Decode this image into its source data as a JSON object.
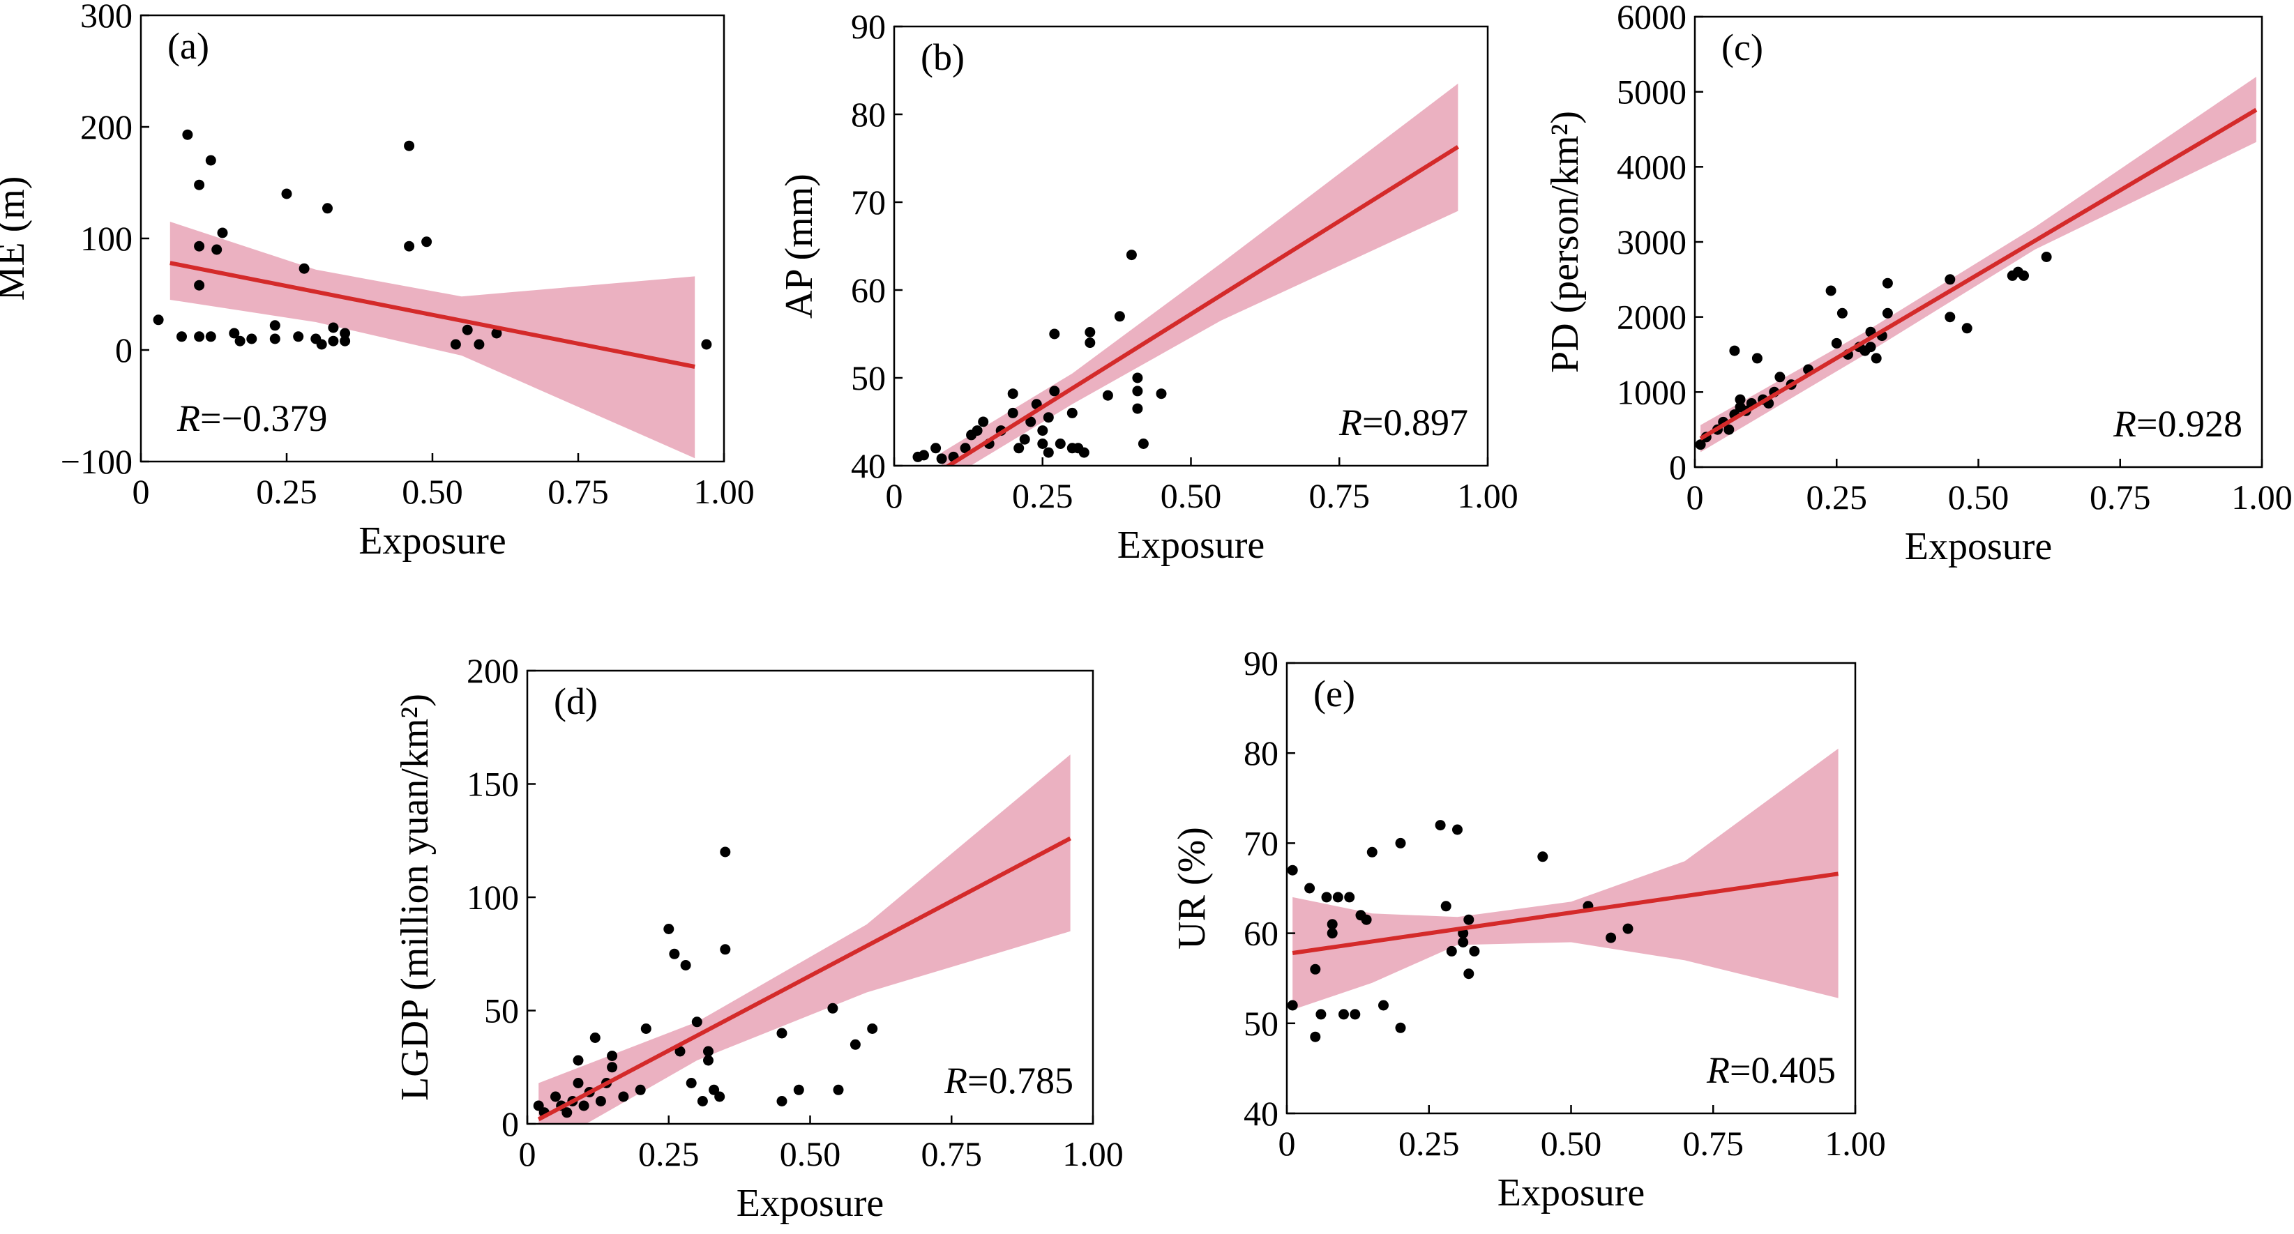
{
  "colors": {
    "fit_line": "#d42a2a",
    "confidence_band": "#e8a3b6",
    "points": "#000000",
    "axes": "#000000"
  },
  "chart_data": [
    {
      "type": "scatter",
      "panel": "(a)",
      "xlabel": "Exposure",
      "ylabel": "ME (m)",
      "xlim": [
        0,
        1
      ],
      "ylim": [
        -100,
        300
      ],
      "xticks": [
        0,
        0.25,
        0.5,
        0.75,
        1.0
      ],
      "xtick_labels": [
        "0",
        "0.25",
        "0.50",
        "0.75",
        "1.00"
      ],
      "yticks": [
        -100,
        0,
        100,
        200,
        300
      ],
      "ytick_labels": [
        "−100",
        "0",
        "100",
        "200",
        "300"
      ],
      "r_prefix": "R",
      "r_value": "=−0.379",
      "r_position": "bottom-left",
      "fit": {
        "x": [
          0.05,
          0.95
        ],
        "y": [
          78,
          -15
        ]
      },
      "band": {
        "x": [
          0.05,
          0.3,
          0.55,
          0.95
        ],
        "upper": [
          115,
          72,
          48,
          66
        ],
        "lower": [
          45,
          25,
          -5,
          -97
        ]
      },
      "points": [
        [
          0.03,
          27
        ],
        [
          0.08,
          193
        ],
        [
          0.1,
          148
        ],
        [
          0.12,
          170
        ],
        [
          0.1,
          93
        ],
        [
          0.14,
          105
        ],
        [
          0.13,
          90
        ],
        [
          0.1,
          58
        ],
        [
          0.07,
          12
        ],
        [
          0.1,
          12
        ],
        [
          0.12,
          12
        ],
        [
          0.16,
          15
        ],
        [
          0.17,
          8
        ],
        [
          0.19,
          10
        ],
        [
          0.23,
          22
        ],
        [
          0.23,
          10
        ],
        [
          0.25,
          140
        ],
        [
          0.27,
          12
        ],
        [
          0.28,
          73
        ],
        [
          0.3,
          10
        ],
        [
          0.31,
          5
        ],
        [
          0.32,
          127
        ],
        [
          0.33,
          8
        ],
        [
          0.35,
          15
        ],
        [
          0.35,
          8
        ],
        [
          0.33,
          20
        ],
        [
          0.46,
          183
        ],
        [
          0.46,
          93
        ],
        [
          0.49,
          97
        ],
        [
          0.54,
          5
        ],
        [
          0.56,
          18
        ],
        [
          0.58,
          5
        ],
        [
          0.61,
          15
        ],
        [
          0.97,
          5
        ]
      ]
    },
    {
      "type": "scatter",
      "panel": "(b)",
      "xlabel": "Exposure",
      "ylabel": "AP (mm)",
      "xlim": [
        0,
        1
      ],
      "ylim": [
        40,
        90
      ],
      "xticks": [
        0,
        0.25,
        0.5,
        0.75,
        1.0
      ],
      "xtick_labels": [
        "0",
        "0.25",
        "0.50",
        "0.75",
        "1.00"
      ],
      "yticks": [
        40,
        50,
        60,
        70,
        80,
        90
      ],
      "ytick_labels": [
        "40",
        "50",
        "60",
        "70",
        "80",
        "90"
      ],
      "r_prefix": "R",
      "r_value": "=0.897",
      "r_position": "bottom-right",
      "fit": {
        "x": [
          0.08,
          0.95
        ],
        "y": [
          39.5,
          76.3
        ]
      },
      "band": {
        "x": [
          0.08,
          0.3,
          0.55,
          0.95
        ],
        "upper": [
          41.5,
          50.5,
          63,
          83.5
        ],
        "lower": [
          38,
          47,
          56.5,
          69
        ]
      },
      "points": [
        [
          0.04,
          41
        ],
        [
          0.05,
          41.2
        ],
        [
          0.07,
          42
        ],
        [
          0.08,
          40.8
        ],
        [
          0.1,
          41
        ],
        [
          0.12,
          42
        ],
        [
          0.13,
          43.5
        ],
        [
          0.14,
          44
        ],
        [
          0.15,
          45
        ],
        [
          0.16,
          42.5
        ],
        [
          0.18,
          44
        ],
        [
          0.2,
          46
        ],
        [
          0.2,
          48.2
        ],
        [
          0.21,
          42
        ],
        [
          0.22,
          43
        ],
        [
          0.23,
          45
        ],
        [
          0.24,
          47
        ],
        [
          0.25,
          42.5
        ],
        [
          0.25,
          44
        ],
        [
          0.26,
          45.5
        ],
        [
          0.26,
          41.5
        ],
        [
          0.27,
          48.5
        ],
        [
          0.27,
          55
        ],
        [
          0.28,
          42.5
        ],
        [
          0.3,
          42
        ],
        [
          0.3,
          46
        ],
        [
          0.31,
          42
        ],
        [
          0.32,
          41.5
        ],
        [
          0.33,
          54
        ],
        [
          0.33,
          55.2
        ],
        [
          0.36,
          48
        ],
        [
          0.38,
          57
        ],
        [
          0.4,
          64
        ],
        [
          0.41,
          50
        ],
        [
          0.41,
          48.5
        ],
        [
          0.41,
          46.5
        ],
        [
          0.42,
          42.5
        ],
        [
          0.45,
          48.2
        ]
      ]
    },
    {
      "type": "scatter",
      "panel": "(c)",
      "xlabel": "Exposure",
      "ylabel": "PD (person/km²)",
      "xlim": [
        0,
        1
      ],
      "ylim": [
        0,
        6000
      ],
      "xticks": [
        0,
        0.25,
        0.5,
        0.75,
        1.0
      ],
      "xtick_labels": [
        "0",
        "0.25",
        "0.50",
        "0.75",
        "1.00"
      ],
      "yticks": [
        0,
        1000,
        2000,
        3000,
        4000,
        5000,
        6000
      ],
      "ytick_labels": [
        "0",
        "1000",
        "2000",
        "3000",
        "4000",
        "5000",
        "6000"
      ],
      "r_prefix": "R",
      "r_value": "=0.928",
      "r_position": "bottom-right",
      "fit": {
        "x": [
          0.01,
          0.99
        ],
        "y": [
          380,
          4760
        ]
      },
      "band": {
        "x": [
          0.01,
          0.3,
          0.6,
          0.99
        ],
        "upper": [
          560,
          1800,
          3200,
          5200
        ],
        "lower": [
          200,
          1500,
          2900,
          4330
        ]
      },
      "points": [
        [
          0.01,
          300
        ],
        [
          0.02,
          400
        ],
        [
          0.04,
          500
        ],
        [
          0.05,
          600
        ],
        [
          0.06,
          500
        ],
        [
          0.07,
          700
        ],
        [
          0.08,
          800
        ],
        [
          0.07,
          1550
        ],
        [
          0.08,
          900
        ],
        [
          0.09,
          750
        ],
        [
          0.1,
          850
        ],
        [
          0.11,
          1450
        ],
        [
          0.12,
          900
        ],
        [
          0.13,
          850
        ],
        [
          0.14,
          1000
        ],
        [
          0.15,
          1200
        ],
        [
          0.17,
          1100
        ],
        [
          0.2,
          1300
        ],
        [
          0.24,
          2350
        ],
        [
          0.25,
          1650
        ],
        [
          0.26,
          2050
        ],
        [
          0.27,
          1500
        ],
        [
          0.29,
          1600
        ],
        [
          0.3,
          1550
        ],
        [
          0.31,
          1800
        ],
        [
          0.31,
          1600
        ],
        [
          0.32,
          1450
        ],
        [
          0.33,
          1750
        ],
        [
          0.34,
          2050
        ],
        [
          0.34,
          2450
        ],
        [
          0.45,
          2500
        ],
        [
          0.45,
          2000
        ],
        [
          0.48,
          1850
        ],
        [
          0.56,
          2550
        ],
        [
          0.57,
          2600
        ],
        [
          0.58,
          2550
        ],
        [
          0.62,
          2800
        ]
      ]
    },
    {
      "type": "scatter",
      "panel": "(d)",
      "xlabel": "Exposure",
      "ylabel": "LGDP (million yuan/km²)",
      "xlim": [
        0,
        1
      ],
      "ylim": [
        0,
        200
      ],
      "xticks": [
        0,
        0.25,
        0.5,
        0.75,
        1.0
      ],
      "xtick_labels": [
        "0",
        "0.25",
        "0.50",
        "0.75",
        "1.00"
      ],
      "yticks": [
        0,
        50,
        100,
        150,
        200
      ],
      "ytick_labels": [
        "0",
        "50",
        "100",
        "150",
        "200"
      ],
      "r_prefix": "R",
      "r_value": "=0.785",
      "r_position": "bottom-right",
      "fit": {
        "x": [
          0.02,
          0.96
        ],
        "y": [
          2,
          126
        ]
      },
      "band": {
        "x": [
          0.02,
          0.3,
          0.6,
          0.96
        ],
        "upper": [
          18,
          45,
          88,
          163
        ],
        "lower": [
          -12,
          28,
          58,
          85
        ]
      },
      "points": [
        [
          0.02,
          8
        ],
        [
          0.03,
          5
        ],
        [
          0.05,
          12
        ],
        [
          0.06,
          8
        ],
        [
          0.07,
          5
        ],
        [
          0.08,
          10
        ],
        [
          0.09,
          18
        ],
        [
          0.09,
          28
        ],
        [
          0.1,
          8
        ],
        [
          0.11,
          14
        ],
        [
          0.12,
          38
        ],
        [
          0.13,
          10
        ],
        [
          0.14,
          18
        ],
        [
          0.15,
          25
        ],
        [
          0.15,
          30
        ],
        [
          0.17,
          12
        ],
        [
          0.2,
          15
        ],
        [
          0.21,
          42
        ],
        [
          0.25,
          86
        ],
        [
          0.26,
          75
        ],
        [
          0.27,
          32
        ],
        [
          0.28,
          70
        ],
        [
          0.29,
          18
        ],
        [
          0.3,
          45
        ],
        [
          0.31,
          10
        ],
        [
          0.32,
          28
        ],
        [
          0.32,
          32
        ],
        [
          0.33,
          15
        ],
        [
          0.34,
          12
        ],
        [
          0.35,
          120
        ],
        [
          0.35,
          77
        ],
        [
          0.45,
          10
        ],
        [
          0.45,
          40
        ],
        [
          0.48,
          15
        ],
        [
          0.54,
          51
        ],
        [
          0.55,
          15
        ],
        [
          0.58,
          35
        ],
        [
          0.61,
          42
        ]
      ]
    },
    {
      "type": "scatter",
      "panel": "(e)",
      "xlabel": "Exposure",
      "ylabel": "UR (%)",
      "xlim": [
        0,
        1
      ],
      "ylim": [
        40,
        90
      ],
      "xticks": [
        0,
        0.25,
        0.5,
        0.75,
        1.0
      ],
      "xtick_labels": [
        "0",
        "0.25",
        "0.50",
        "0.75",
        "1.00"
      ],
      "yticks": [
        40,
        50,
        60,
        70,
        80,
        90
      ],
      "ytick_labels": [
        "40",
        "50",
        "60",
        "70",
        "80",
        "90"
      ],
      "r_prefix": "R",
      "r_value": "=0.405",
      "r_position": "bottom-right",
      "fit": {
        "x": [
          0.01,
          0.97
        ],
        "y": [
          57.8,
          66.6
        ]
      },
      "band": {
        "x": [
          0.01,
          0.15,
          0.3,
          0.5,
          0.7,
          0.97
        ],
        "upper": [
          64,
          62.2,
          61.8,
          63.5,
          68,
          80.5
        ],
        "lower": [
          51.5,
          54.5,
          58.7,
          59,
          57,
          52.8
        ]
      },
      "points": [
        [
          0.01,
          52
        ],
        [
          0.01,
          67
        ],
        [
          0.04,
          65
        ],
        [
          0.05,
          56
        ],
        [
          0.06,
          51
        ],
        [
          0.07,
          64
        ],
        [
          0.08,
          60
        ],
        [
          0.08,
          61
        ],
        [
          0.09,
          64
        ],
        [
          0.1,
          51
        ],
        [
          0.11,
          64
        ],
        [
          0.12,
          51
        ],
        [
          0.13,
          62
        ],
        [
          0.14,
          61.5
        ],
        [
          0.15,
          69
        ],
        [
          0.17,
          52
        ],
        [
          0.2,
          70
        ],
        [
          0.2,
          49.5
        ],
        [
          0.27,
          72
        ],
        [
          0.28,
          63
        ],
        [
          0.29,
          58
        ],
        [
          0.3,
          71.5
        ],
        [
          0.31,
          59
        ],
        [
          0.31,
          60
        ],
        [
          0.32,
          61.5
        ],
        [
          0.32,
          55.5
        ],
        [
          0.33,
          58
        ],
        [
          0.45,
          68.5
        ],
        [
          0.53,
          63
        ],
        [
          0.57,
          59.5
        ],
        [
          0.6,
          60.5
        ],
        [
          0.05,
          48.5
        ]
      ]
    }
  ]
}
